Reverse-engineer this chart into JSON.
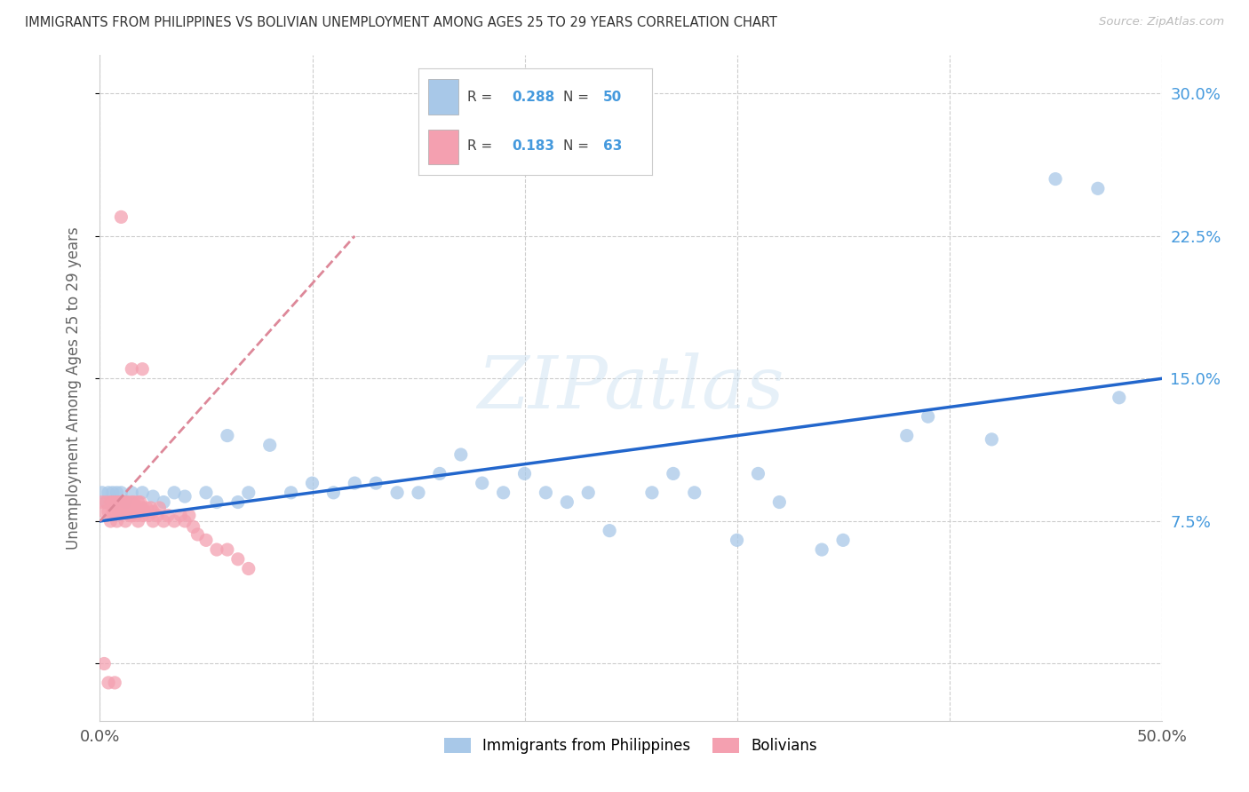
{
  "title": "IMMIGRANTS FROM PHILIPPINES VS BOLIVIAN UNEMPLOYMENT AMONG AGES 25 TO 29 YEARS CORRELATION CHART",
  "source": "Source: ZipAtlas.com",
  "ylabel": "Unemployment Among Ages 25 to 29 years",
  "xlim": [
    0.0,
    0.5
  ],
  "ylim": [
    -0.03,
    0.32
  ],
  "xticks": [
    0.0,
    0.1,
    0.2,
    0.3,
    0.4,
    0.5
  ],
  "xtick_labels": [
    "0.0%",
    "",
    "",
    "",
    "",
    "50.0%"
  ],
  "ytick_vals": [
    0.0,
    0.075,
    0.15,
    0.225,
    0.3
  ],
  "ytick_labels_right": [
    "",
    "7.5%",
    "15.0%",
    "22.5%",
    "30.0%"
  ],
  "color_blue": "#a8c8e8",
  "color_pink": "#f4a0b0",
  "color_blue_text": "#4499dd",
  "color_line_blue": "#2266cc",
  "color_line_pink": "#dd8899",
  "color_grid": "#cccccc",
  "watermark": "ZIPatlas",
  "legend_label_1": "Immigrants from Philippines",
  "legend_label_2": "Bolivians",
  "legend_r1_val": "0.288",
  "legend_n1_val": "50",
  "legend_r2_val": "0.183",
  "legend_n2_val": "63",
  "phil_line_x0": 0.0,
  "phil_line_y0": 0.075,
  "phil_line_x1": 0.5,
  "phil_line_y1": 0.15,
  "boliv_line_x0": 0.0,
  "boliv_line_y0": 0.075,
  "boliv_line_x1": 0.12,
  "boliv_line_y1": 0.225,
  "phil_x": [
    0.001,
    0.003,
    0.004,
    0.006,
    0.007,
    0.008,
    0.01,
    0.012,
    0.015,
    0.02,
    0.025,
    0.03,
    0.035,
    0.04,
    0.05,
    0.055,
    0.06,
    0.065,
    0.07,
    0.08,
    0.09,
    0.1,
    0.11,
    0.12,
    0.13,
    0.14,
    0.15,
    0.16,
    0.17,
    0.18,
    0.19,
    0.2,
    0.21,
    0.22,
    0.23,
    0.24,
    0.26,
    0.27,
    0.28,
    0.3,
    0.31,
    0.32,
    0.34,
    0.35,
    0.38,
    0.39,
    0.42,
    0.45,
    0.47,
    0.48
  ],
  "phil_y": [
    0.09,
    0.085,
    0.09,
    0.09,
    0.085,
    0.09,
    0.09,
    0.085,
    0.09,
    0.09,
    0.088,
    0.085,
    0.09,
    0.088,
    0.09,
    0.085,
    0.12,
    0.085,
    0.09,
    0.115,
    0.09,
    0.095,
    0.09,
    0.095,
    0.095,
    0.09,
    0.09,
    0.1,
    0.11,
    0.095,
    0.09,
    0.1,
    0.09,
    0.085,
    0.09,
    0.07,
    0.09,
    0.1,
    0.09,
    0.065,
    0.1,
    0.085,
    0.06,
    0.065,
    0.12,
    0.13,
    0.118,
    0.255,
    0.25,
    0.14
  ],
  "boliv_x": [
    0.001,
    0.002,
    0.003,
    0.004,
    0.005,
    0.005,
    0.006,
    0.006,
    0.007,
    0.007,
    0.008,
    0.008,
    0.009,
    0.009,
    0.01,
    0.01,
    0.011,
    0.011,
    0.012,
    0.012,
    0.013,
    0.013,
    0.014,
    0.014,
    0.015,
    0.015,
    0.016,
    0.016,
    0.017,
    0.017,
    0.018,
    0.018,
    0.019,
    0.019,
    0.02,
    0.02,
    0.021,
    0.022,
    0.023,
    0.024,
    0.025,
    0.025,
    0.027,
    0.028,
    0.03,
    0.032,
    0.035,
    0.038,
    0.04,
    0.042,
    0.044,
    0.046,
    0.05,
    0.055,
    0.06,
    0.065,
    0.07,
    0.002,
    0.004,
    0.007,
    0.01,
    0.015,
    0.02
  ],
  "boliv_y": [
    0.085,
    0.08,
    0.085,
    0.08,
    0.085,
    0.075,
    0.08,
    0.085,
    0.08,
    0.085,
    0.075,
    0.085,
    0.08,
    0.085,
    0.08,
    0.085,
    0.08,
    0.085,
    0.075,
    0.085,
    0.08,
    0.085,
    0.078,
    0.082,
    0.085,
    0.078,
    0.082,
    0.085,
    0.078,
    0.082,
    0.085,
    0.075,
    0.08,
    0.085,
    0.078,
    0.082,
    0.08,
    0.082,
    0.078,
    0.082,
    0.08,
    0.075,
    0.078,
    0.082,
    0.075,
    0.078,
    0.075,
    0.078,
    0.075,
    0.078,
    0.072,
    0.068,
    0.065,
    0.06,
    0.06,
    0.055,
    0.05,
    0.0,
    -0.01,
    -0.01,
    0.235,
    0.155,
    0.155
  ]
}
